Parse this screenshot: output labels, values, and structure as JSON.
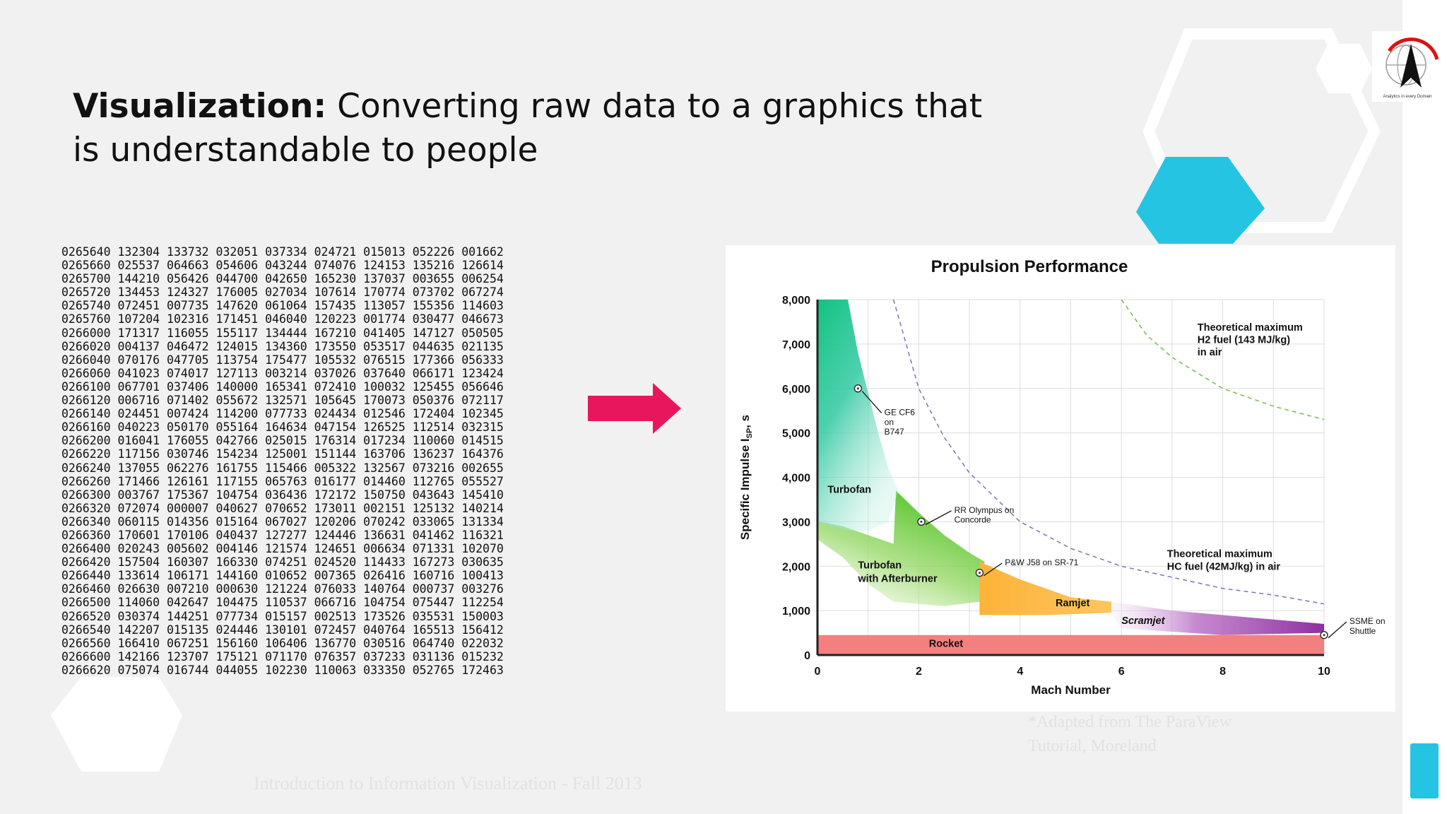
{
  "slide": {
    "title_bold": "Visualization:",
    "title_rest": " Converting raw data to a graphics that is understandable to people",
    "raw_data_lines": [
      "0265640 132304 133732 032051 037334 024721 015013 052226 001662",
      "0265660 025537 064663 054606 043244 074076 124153 135216 126614",
      "0265700 144210 056426 044700 042650 165230 137037 003655 006254",
      "0265720 134453 124327 176005 027034 107614 170774 073702 067274",
      "0265740 072451 007735 147620 061064 157435 113057 155356 114603",
      "0265760 107204 102316 171451 046040 120223 001774 030477 046673",
      "0266000 171317 116055 155117 134444 167210 041405 147127 050505",
      "0266020 004137 046472 124015 134360 173550 053517 044635 021135",
      "0266040 070176 047705 113754 175477 105532 076515 177366 056333",
      "0266060 041023 074017 127113 003214 037026 037640 066171 123424",
      "0266100 067701 037406 140000 165341 072410 100032 125455 056646",
      "0266120 006716 071402 055672 132571 105645 170073 050376 072117",
      "0266140 024451 007424 114200 077733 024434 012546 172404 102345",
      "0266160 040223 050170 055164 164634 047154 126525 112514 032315",
      "0266200 016041 176055 042766 025015 176314 017234 110060 014515",
      "0266220 117156 030746 154234 125001 151144 163706 136237 164376",
      "0266240 137055 062276 161755 115466 005322 132567 073216 002655",
      "0266260 171466 126161 117155 065763 016177 014460 112765 055527",
      "0266300 003767 175367 104754 036436 172172 150750 043643 145410",
      "0266320 072074 000007 040627 070652 173011 002151 125132 140214",
      "0266340 060115 014356 015164 067027 120206 070242 033065 131334",
      "0266360 170601 170106 040437 127277 124446 136631 041462 116321",
      "0266400 020243 005602 004146 121574 124651 006634 071331 102070",
      "0266420 157504 160307 166330 074251 024520 114433 167273 030635",
      "0266440 133614 106171 144160 010652 007365 026416 160716 100413",
      "0266460 026630 007210 000630 121224 076033 140764 000737 003276",
      "0266500 114060 042647 104475 110537 066716 104754 075447 112254",
      "0266520 030374 144251 077734 015157 002513 173526 035531 150003",
      "0266540 142207 015135 024446 130101 072457 040764 165513 156412",
      "0266560 166410 067251 156160 106406 136770 030516 064740 022032",
      "0266600 142166 123707 175121 071170 076357 037233 031136 015232",
      "0266620 075074 016744 044055 102230 110063 033350 052765 172463"
    ],
    "footnote": "*Adapted from The ParaView Tutorial, Moreland",
    "footer": "Introduction to Information Visualization - Fall 2013"
  },
  "logo": {
    "caption": "Analytics in every Domain"
  },
  "colors": {
    "arrow": "#e8175d",
    "accent_cyan": "#25c4e3",
    "turbofan": "#18c58b",
    "afterburner": "#66cc33",
    "ramjet": "#fdb338",
    "scramjet": "#9b3fa8",
    "rocket": "#f37f7f"
  },
  "icons": [
    "right-arrow-icon",
    "logo-globe-icon"
  ],
  "chart_data": {
    "type": "area",
    "title": "Propulsion Performance",
    "xlabel": "Mach Number",
    "ylabel_main": "Specific Impulse I",
    "ylabel_sub": "SP",
    "ylabel_unit": ", s",
    "xlim": [
      0,
      10
    ],
    "ylim": [
      0,
      8000
    ],
    "x_ticks": [
      "0",
      "2",
      "4",
      "6",
      "8",
      "10"
    ],
    "y_ticks": [
      "0",
      "1,000",
      "2,000",
      "3,000",
      "4,000",
      "5,000",
      "6,000",
      "7,000",
      "8,000"
    ],
    "grid": true,
    "regions": [
      {
        "name": "Turbofan",
        "points": [
          [
            0,
            8000
          ],
          [
            0.6,
            8000
          ],
          [
            0.8,
            6800
          ],
          [
            1.0,
            5900
          ],
          [
            1.2,
            5000
          ],
          [
            1.4,
            4200
          ],
          [
            1.6,
            3700
          ],
          [
            1.4,
            3000
          ],
          [
            1.0,
            2800
          ],
          [
            0.6,
            2800
          ],
          [
            0.3,
            2900
          ],
          [
            0,
            3000
          ]
        ]
      },
      {
        "name": "Turbofan with Afterburner",
        "points": [
          [
            1.55,
            3700
          ],
          [
            2.0,
            3200
          ],
          [
            2.5,
            2700
          ],
          [
            3.0,
            2300
          ],
          [
            3.3,
            2100
          ],
          [
            3.2,
            1200
          ],
          [
            2.5,
            1100
          ],
          [
            1.5,
            1200
          ],
          [
            1.0,
            1600
          ],
          [
            0.5,
            2200
          ],
          [
            0,
            2600
          ],
          [
            0,
            3000
          ],
          [
            0.5,
            2900
          ],
          [
            1.0,
            2700
          ],
          [
            1.5,
            2500
          ]
        ]
      },
      {
        "name": "Ramjet",
        "points": [
          [
            3.2,
            2100
          ],
          [
            4.0,
            1700
          ],
          [
            5.0,
            1300
          ],
          [
            5.8,
            1200
          ],
          [
            5.8,
            950
          ],
          [
            4.5,
            900
          ],
          [
            3.2,
            900
          ]
        ]
      },
      {
        "name": "Scramjet",
        "points": [
          [
            5.8,
            1200
          ],
          [
            7.0,
            1000
          ],
          [
            8.5,
            850
          ],
          [
            10.0,
            700
          ],
          [
            10.0,
            500
          ],
          [
            8.0,
            450
          ],
          [
            6.0,
            600
          ],
          [
            5.8,
            950
          ]
        ]
      },
      {
        "name": "Rocket",
        "points": [
          [
            0,
            450
          ],
          [
            10,
            450
          ],
          [
            10,
            0
          ],
          [
            0,
            0
          ]
        ]
      }
    ],
    "curves": [
      {
        "name": "Theoretical maximum H2 fuel (143 MJ/kg) in air",
        "style": "dashed-green",
        "points": [
          [
            6.0,
            8000
          ],
          [
            6.5,
            7200
          ],
          [
            7.0,
            6700
          ],
          [
            8.0,
            6000
          ],
          [
            9.0,
            5600
          ],
          [
            10.0,
            5300
          ]
        ]
      },
      {
        "name": "Theoretical maximum HC fuel (42MJ/kg) in air",
        "style": "dashed-purple",
        "points": [
          [
            1.5,
            8000
          ],
          [
            2.0,
            6000
          ],
          [
            2.5,
            4900
          ],
          [
            3.0,
            4100
          ],
          [
            4.0,
            3000
          ],
          [
            5.0,
            2400
          ],
          [
            6.0,
            2000
          ],
          [
            7.0,
            1750
          ],
          [
            8.0,
            1500
          ],
          [
            9.0,
            1350
          ],
          [
            10.0,
            1150
          ]
        ]
      }
    ],
    "engines": [
      {
        "name": "GE CF6 on B747",
        "x": 0.8,
        "y": 6000
      },
      {
        "name": "RR Olympus on Concorde",
        "x": 2.05,
        "y": 3000
      },
      {
        "name": "P&W J58 on SR-71",
        "x": 3.2,
        "y": 1850
      },
      {
        "name": "SSME on Shuttle",
        "x": 10.0,
        "y": 450
      }
    ],
    "region_labels": [
      {
        "text": "Turbofan",
        "x": 0.2,
        "y": 3650,
        "weight": "bold",
        "style": "normal"
      },
      {
        "text": "Turbofan",
        "x": 0.8,
        "y": 1950,
        "weight": "bold",
        "style": "normal"
      },
      {
        "text": "with Afterburner",
        "x": 0.8,
        "y": 1650,
        "weight": "bold",
        "style": "normal"
      },
      {
        "text": "Ramjet",
        "x": 4.7,
        "y": 1100,
        "weight": "bold",
        "style": "normal"
      },
      {
        "text": "Scramjet",
        "x": 6.0,
        "y": 700,
        "weight": "bold",
        "style": "italic"
      },
      {
        "text": "Rocket",
        "x": 2.2,
        "y": 180,
        "weight": "bold",
        "style": "normal"
      },
      {
        "text": "Theoretical maximum",
        "x": 7.5,
        "y": 7300,
        "weight": "bold",
        "style": "normal"
      },
      {
        "text": "H2 fuel (143 MJ/kg)",
        "x": 7.5,
        "y": 7020,
        "weight": "bold",
        "style": "normal"
      },
      {
        "text": "in air",
        "x": 7.5,
        "y": 6740,
        "weight": "bold",
        "style": "normal"
      },
      {
        "text": "Theoretical maximum",
        "x": 6.9,
        "y": 2200,
        "weight": "bold",
        "style": "normal"
      },
      {
        "text": "HC fuel (42MJ/kg) in air",
        "x": 6.9,
        "y": 1920,
        "weight": "bold",
        "style": "normal"
      }
    ],
    "engine_labels": [
      {
        "text": "GE CF6",
        "x": 1.32,
        "y": 5400
      },
      {
        "text": "on",
        "x": 1.32,
        "y": 5180
      },
      {
        "text": "B747",
        "x": 1.32,
        "y": 4960
      },
      {
        "text": "RR Olympus on",
        "x": 2.7,
        "y": 3200
      },
      {
        "text": "Concorde",
        "x": 2.7,
        "y": 2980
      },
      {
        "text": "P&W J58 on SR-71",
        "x": 3.7,
        "y": 2020
      },
      {
        "text": "SSME on",
        "x": 10.5,
        "y": 700
      },
      {
        "text": "Shuttle",
        "x": 10.5,
        "y": 480
      }
    ]
  }
}
